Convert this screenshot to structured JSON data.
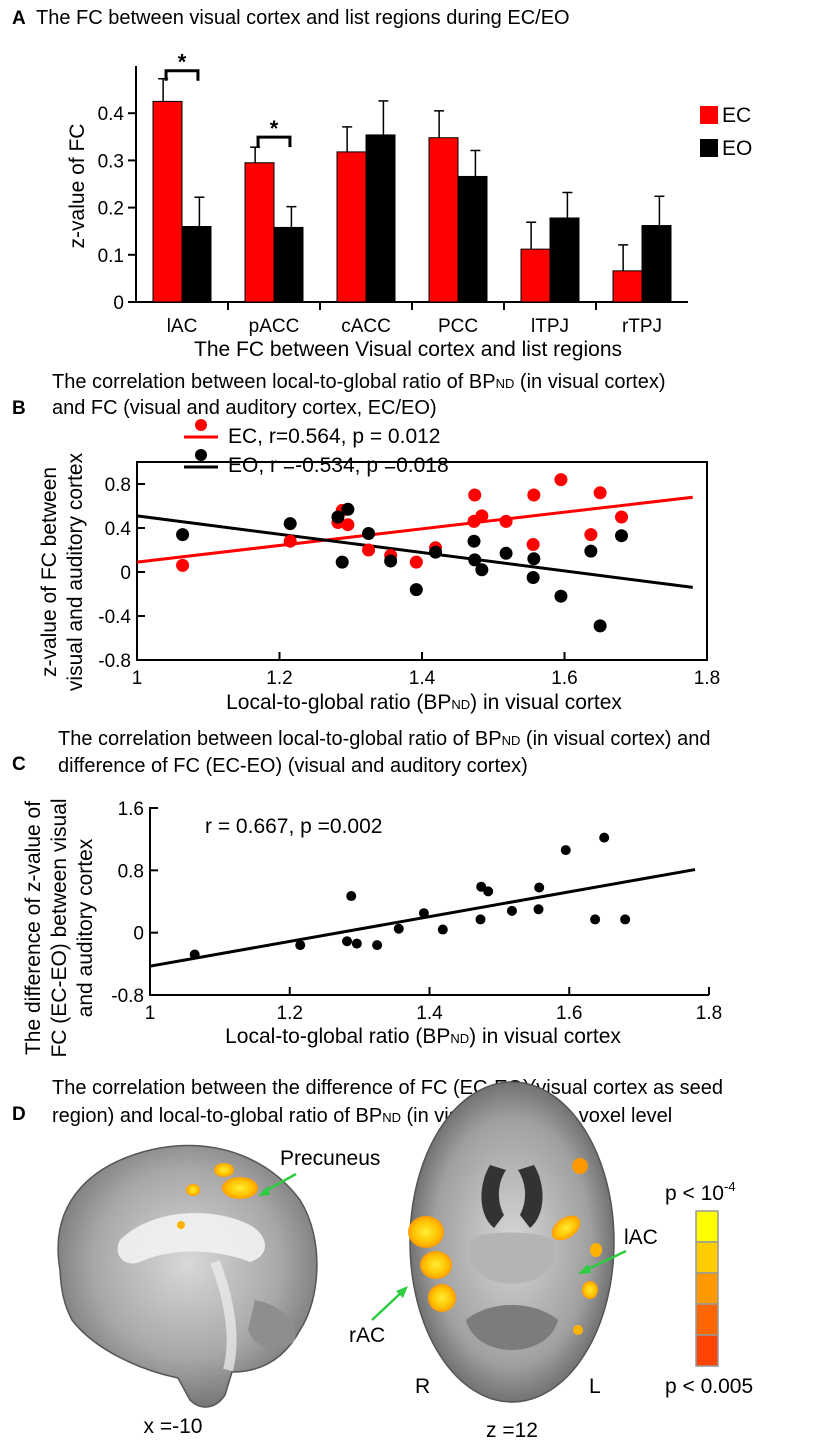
{
  "panels": {
    "A": {
      "label": "A",
      "title": "The FC between visual cortex and list regions during EC/EO"
    },
    "B": {
      "label": "B",
      "title_line1": "The correlation between local-to-global ratio of BP",
      "title_line1_sub": "ND",
      "title_line1_end": " (in visual cortex)",
      "title_line2": "and FC (visual and auditory cortex, EC/EO)"
    },
    "C": {
      "label": "C",
      "title_line1": "The correlation between local-to-global ratio of BP",
      "title_line1_sub": "ND",
      "title_line1_end": " (in visual cortex) and",
      "title_line2": "difference of FC (EC-EO) (visual and auditory cortex)"
    },
    "D": {
      "label": "D",
      "title_line1": "The correlation between the difference of FC (EC-EO)(visual cortex as seed",
      "title_line2_a": "region) and local-to-global ratio of BP",
      "title_line2_sub": "ND",
      "title_line2_b": " (in visual cortex) in voxel level"
    }
  },
  "chart_data": [
    {
      "panel": "A",
      "type": "bar",
      "categories": [
        "lAC",
        "pACC",
        "cACC",
        "PCC",
        "lTPJ",
        "rTPJ"
      ],
      "series": [
        {
          "name": "EC",
          "color": "#ff0000",
          "values": [
            0.425,
            0.295,
            0.318,
            0.348,
            0.112,
            0.066
          ],
          "errors": [
            0.048,
            0.033,
            0.053,
            0.057,
            0.057,
            0.055
          ]
        },
        {
          "name": "EO",
          "color": "#000000",
          "values": [
            0.16,
            0.158,
            0.354,
            0.266,
            0.178,
            0.162
          ],
          "errors": [
            0.062,
            0.044,
            0.072,
            0.055,
            0.054,
            0.062
          ]
        }
      ],
      "significance": [
        {
          "category": "lAC",
          "mark": "*"
        },
        {
          "category": "pACC",
          "mark": "*"
        }
      ],
      "xlabel": "The FC between Visual cortex and list regions",
      "ylabel": "z-value of FC",
      "ylim": [
        0,
        0.5
      ],
      "yticks": [
        "0",
        "0.1",
        "0.2",
        "0.3",
        "0.4"
      ],
      "legend": "right"
    },
    {
      "panel": "B",
      "type": "scatter",
      "series": [
        {
          "name": "EC",
          "color": "#ff0000",
          "legend_text": "EC, r=0.564,  p = 0.012",
          "points": [
            [
              1.064,
              0.06
            ],
            [
              1.215,
              0.28
            ],
            [
              1.282,
              0.45
            ],
            [
              1.288,
              0.56
            ],
            [
              1.296,
              0.43
            ],
            [
              1.325,
              0.2
            ],
            [
              1.356,
              0.15
            ],
            [
              1.392,
              0.09
            ],
            [
              1.419,
              0.22
            ],
            [
              1.473,
              0.46
            ],
            [
              1.474,
              0.7
            ],
            [
              1.484,
              0.51
            ],
            [
              1.518,
              0.46
            ],
            [
              1.556,
              0.25
            ],
            [
              1.557,
              0.7
            ],
            [
              1.595,
              0.84
            ],
            [
              1.637,
              0.34
            ],
            [
              1.65,
              0.72
            ],
            [
              1.68,
              0.5
            ]
          ],
          "fit": [
            [
              1.0,
              0.09
            ],
            [
              1.78,
              0.68
            ]
          ]
        },
        {
          "name": "EO",
          "color": "#000000",
          "legend_text": "EO, r =-0.534, p =0.018",
          "points": [
            [
              1.064,
              0.34
            ],
            [
              1.215,
              0.44
            ],
            [
              1.282,
              0.5
            ],
            [
              1.288,
              0.09
            ],
            [
              1.296,
              0.57
            ],
            [
              1.325,
              0.35
            ],
            [
              1.356,
              0.1
            ],
            [
              1.392,
              -0.16
            ],
            [
              1.419,
              0.18
            ],
            [
              1.473,
              0.28
            ],
            [
              1.474,
              0.11
            ],
            [
              1.484,
              0.02
            ],
            [
              1.518,
              0.17
            ],
            [
              1.556,
              -0.05
            ],
            [
              1.557,
              0.12
            ],
            [
              1.595,
              -0.22
            ],
            [
              1.637,
              0.19
            ],
            [
              1.65,
              -0.49
            ],
            [
              1.68,
              0.33
            ]
          ],
          "fit": [
            [
              1.0,
              0.51
            ],
            [
              1.78,
              -0.14
            ]
          ]
        }
      ],
      "xlabel": "Local-to-global ratio (BP",
      "xlabel_sub": "ND",
      "xlabel_end": ") in visual cortex",
      "ylabel_line1": "z-value of FC between",
      "ylabel_line2": "visual and auditory cortex",
      "xlim": [
        1,
        1.8
      ],
      "ylim": [
        -0.8,
        1.0
      ],
      "xticks": [
        "1",
        "1.2",
        "1.4",
        "1.6",
        "1.8"
      ],
      "yticks": [
        "-0.8",
        "-0.4",
        "0",
        "0.4",
        "0.8"
      ]
    },
    {
      "panel": "C",
      "type": "scatter",
      "series": [
        {
          "name": "EC-EO",
          "color": "#000000",
          "points": [
            [
              1.064,
              -0.28
            ],
            [
              1.215,
              -0.16
            ],
            [
              1.282,
              -0.11
            ],
            [
              1.288,
              0.47
            ],
            [
              1.296,
              -0.14
            ],
            [
              1.325,
              -0.16
            ],
            [
              1.356,
              0.05
            ],
            [
              1.392,
              0.25
            ],
            [
              1.419,
              0.04
            ],
            [
              1.473,
              0.17
            ],
            [
              1.474,
              0.59
            ],
            [
              1.484,
              0.53
            ],
            [
              1.518,
              0.28
            ],
            [
              1.556,
              0.3
            ],
            [
              1.557,
              0.58
            ],
            [
              1.595,
              1.06
            ],
            [
              1.637,
              0.17
            ],
            [
              1.65,
              1.22
            ],
            [
              1.68,
              0.17
            ]
          ],
          "fit": [
            [
              1.0,
              -0.43
            ],
            [
              1.78,
              0.81
            ]
          ]
        }
      ],
      "annotation": "r = 0.667, p =0.002",
      "xlabel": "Local-to-global ratio (BP",
      "xlabel_sub": "ND",
      "xlabel_end": ") in visual cortex",
      "ylabel_line1": "The difference of z-value of",
      "ylabel_line2": "FC (EC-EO) between visual",
      "ylabel_line3": "and auditory cortex",
      "xlim": [
        1,
        1.8
      ],
      "ylim": [
        -0.8,
        1.6
      ],
      "xticks": [
        "1",
        "1.2",
        "1.4",
        "1.6",
        "1.8"
      ],
      "yticks": [
        "-0.8",
        "0",
        "0.8",
        "1.6"
      ]
    }
  ],
  "brain": {
    "sagittal_caption": "x =-10",
    "axial_caption": "z =12",
    "precuneus_label": "Precuneus",
    "lac_label": "lAC",
    "rac_label": "rAC",
    "right_label": "R",
    "left_label": "L",
    "colorbar_top": "p < 10",
    "colorbar_top_sup": "-4",
    "colorbar_bottom": "p < 0.005",
    "colorbar_colors": [
      "#ffff00",
      "#ffcc00",
      "#ff9900",
      "#ff6600",
      "#ff4400"
    ]
  }
}
